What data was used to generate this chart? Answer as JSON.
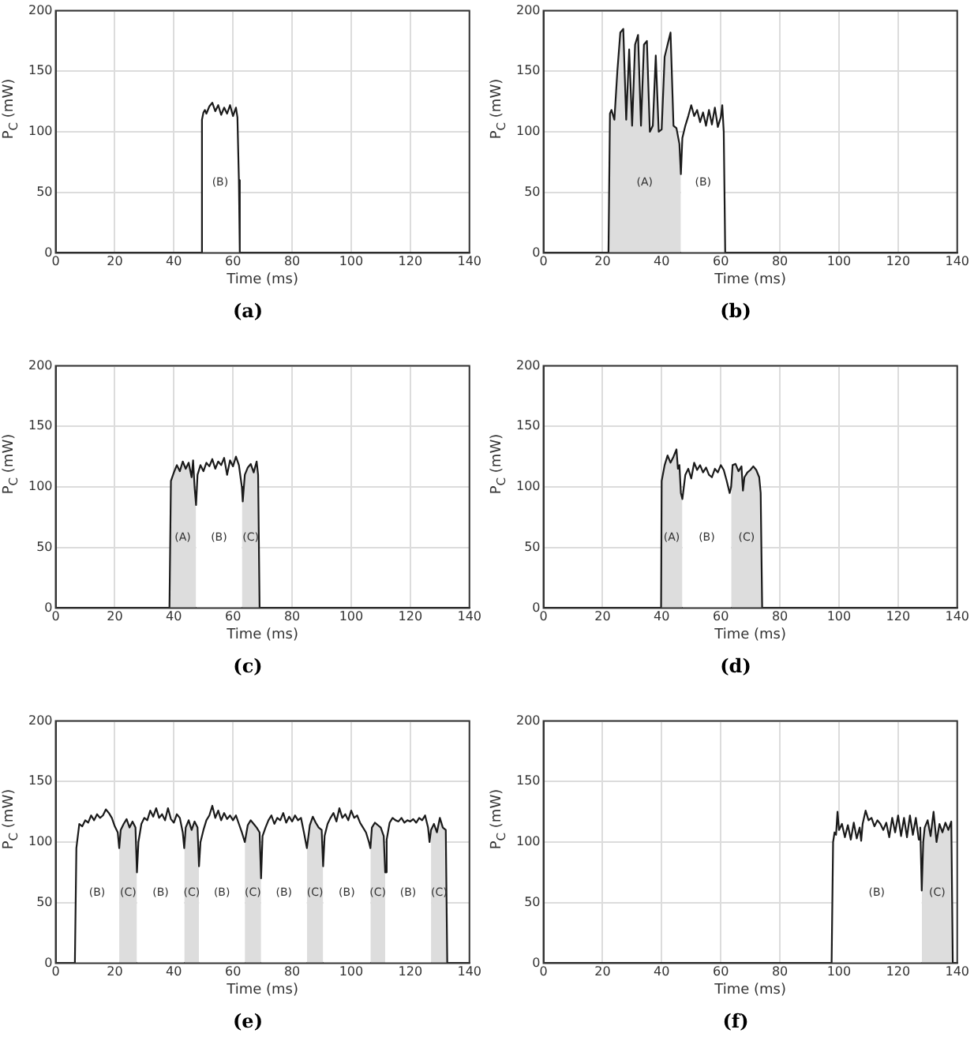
{
  "chart_data": [
    {
      "type": "line",
      "title": "(a)",
      "xlabel": "Time (ms)",
      "ylabel": "P$_{C}$ (mW)",
      "xlim": [
        0,
        140
      ],
      "xticks": [
        0,
        20,
        40,
        60,
        80,
        100,
        120,
        140
      ],
      "ylim": [
        0,
        200
      ],
      "yticks": [
        0,
        50,
        100,
        150,
        200
      ],
      "grid": true,
      "series": [
        {
          "type": "line",
          "color": "#1a1a1a",
          "x": [
            0,
            49,
            49.5,
            50,
            50.5,
            51,
            52,
            53,
            54,
            55,
            56,
            57,
            58,
            59,
            60,
            61,
            61.5,
            62,
            62.3,
            140
          ],
          "values": [
            0,
            0,
            110,
            116,
            118,
            115,
            121,
            124,
            117,
            122,
            114,
            120,
            115,
            122,
            113,
            120,
            112,
            60,
            0,
            0
          ]
        },
        {
          "type": "area",
          "name": "(B)",
          "color": "#ffffff",
          "x": [
            49,
            49.5,
            50,
            50.5,
            51,
            52,
            53,
            54,
            55,
            56,
            57,
            58,
            59,
            60,
            61,
            61.5,
            62,
            62.3
          ],
          "values": [
            0,
            110,
            116,
            118,
            115,
            121,
            124,
            117,
            122,
            114,
            120,
            115,
            122,
            113,
            120,
            112,
            60,
            0
          ]
        }
      ]
    },
    {
      "type": "line",
      "title": "(b)",
      "xlabel": "Time (ms)",
      "ylabel": "P$_{C}$ (mW)",
      "xlim": [
        0,
        140
      ],
      "xticks": [
        0,
        20,
        40,
        60,
        80,
        100,
        120,
        140
      ],
      "ylim": [
        0,
        200
      ],
      "yticks": [
        0,
        50,
        100,
        150,
        200
      ],
      "grid": true,
      "series": [
        {
          "type": "line",
          "color": "#1a1a1a",
          "x": [
            0,
            22,
            22.5,
            23,
            24,
            25,
            26,
            27,
            28,
            29,
            30,
            31,
            32,
            33,
            34,
            35,
            36,
            37,
            38,
            39,
            40,
            41,
            42,
            43,
            44,
            45,
            46,
            46.5,
            47,
            48,
            49,
            50,
            51,
            52,
            53,
            54,
            55,
            56,
            57,
            58,
            59,
            60,
            60.5,
            61,
            61.5,
            140
          ],
          "values": [
            0,
            0,
            115,
            118,
            110,
            150,
            182,
            185,
            110,
            168,
            105,
            172,
            180,
            105,
            172,
            175,
            100,
            105,
            163,
            100,
            102,
            162,
            172,
            182,
            105,
            103,
            90,
            65,
            95,
            105,
            113,
            122,
            113,
            118,
            108,
            116,
            105,
            118,
            106,
            120,
            104,
            112,
            122,
            100,
            0,
            0
          ]
        },
        {
          "type": "area",
          "name": "(A)",
          "color": "#dddddd",
          "x": [
            22,
            22.5,
            23,
            24,
            25,
            26,
            27,
            28,
            29,
            30,
            31,
            32,
            33,
            34,
            35,
            36,
            37,
            38,
            39,
            40,
            41,
            42,
            43,
            44,
            45,
            46,
            46.5
          ],
          "values": [
            0,
            115,
            118,
            110,
            150,
            182,
            185,
            110,
            168,
            105,
            172,
            180,
            105,
            172,
            175,
            100,
            105,
            163,
            100,
            102,
            162,
            172,
            182,
            105,
            103,
            90,
            65
          ]
        },
        {
          "type": "area",
          "name": "(B)",
          "color": "#ffffff",
          "x": [
            46.5,
            47,
            48,
            49,
            50,
            51,
            52,
            53,
            54,
            55,
            56,
            57,
            58,
            59,
            60,
            60.5,
            61,
            61.5
          ],
          "values": [
            65,
            95,
            105,
            113,
            122,
            113,
            118,
            108,
            116,
            105,
            118,
            106,
            120,
            104,
            112,
            122,
            100,
            0
          ]
        }
      ]
    },
    {
      "type": "line",
      "title": "(c)",
      "xlabel": "Time (ms)",
      "ylabel": "P$_{C}$ (mW)",
      "xlim": [
        0,
        140
      ],
      "xticks": [
        0,
        20,
        40,
        60,
        80,
        100,
        120,
        140
      ],
      "ylim": [
        0,
        200
      ],
      "yticks": [
        0,
        50,
        100,
        150,
        200
      ],
      "grid": true,
      "series": [
        {
          "type": "line",
          "color": "#1a1a1a",
          "x": [
            0,
            38.5,
            39,
            40,
            41,
            42,
            43,
            44,
            45,
            46,
            46.5,
            47,
            47.5,
            48,
            49,
            50,
            51,
            52,
            53,
            54,
            55,
            56,
            57,
            58,
            59,
            60,
            61,
            62,
            63,
            63.3,
            64,
            65,
            66,
            67,
            68,
            68.5,
            69,
            140
          ],
          "values": [
            0,
            0,
            105,
            112,
            118,
            113,
            121,
            115,
            120,
            108,
            122,
            100,
            85,
            110,
            118,
            113,
            120,
            117,
            123,
            115,
            121,
            118,
            124,
            110,
            122,
            117,
            125,
            118,
            100,
            88,
            110,
            116,
            119,
            112,
            121,
            110,
            0,
            0
          ]
        },
        {
          "type": "area",
          "name": "(A)",
          "color": "#dddddd",
          "x": [
            38.5,
            39,
            40,
            41,
            42,
            43,
            44,
            45,
            46,
            46.5,
            47,
            47.5
          ],
          "values": [
            0,
            105,
            112,
            118,
            113,
            121,
            115,
            120,
            108,
            122,
            100,
            85
          ]
        },
        {
          "type": "area",
          "name": "(B)",
          "color": "#ffffff",
          "x": [
            47.5,
            48,
            49,
            50,
            51,
            52,
            53,
            54,
            55,
            56,
            57,
            58,
            59,
            60,
            61,
            62,
            63
          ],
          "values": [
            85,
            110,
            118,
            113,
            120,
            117,
            123,
            115,
            121,
            118,
            124,
            110,
            122,
            117,
            125,
            118,
            100
          ]
        },
        {
          "type": "area",
          "name": "(C)",
          "color": "#dddddd",
          "x": [
            63,
            63.3,
            64,
            65,
            66,
            67,
            68,
            68.5,
            69
          ],
          "values": [
            100,
            88,
            110,
            116,
            119,
            112,
            121,
            110,
            0
          ]
        }
      ]
    },
    {
      "type": "line",
      "title": "(d)",
      "xlabel": "Time (ms)",
      "ylabel": "P$_{C}$ (mW)",
      "xlim": [
        0,
        140
      ],
      "xticks": [
        0,
        20,
        40,
        60,
        80,
        100,
        120,
        140
      ],
      "ylim": [
        0,
        200
      ],
      "yticks": [
        0,
        50,
        100,
        150,
        200
      ],
      "grid": true,
      "series": [
        {
          "type": "line",
          "color": "#1a1a1a",
          "x": [
            0,
            39.8,
            40,
            41,
            42,
            43,
            44,
            45,
            45.5,
            46,
            46.5,
            47,
            48,
            49,
            50,
            51,
            52,
            53,
            54,
            55,
            56,
            57,
            58,
            59,
            60,
            61,
            62,
            63,
            63.5,
            64,
            65,
            66,
            67,
            67.5,
            68,
            69,
            70,
            71,
            72,
            73,
            73.5,
            74,
            140
          ],
          "values": [
            0,
            0,
            105,
            118,
            126,
            120,
            125,
            131,
            115,
            118,
            95,
            90,
            110,
            115,
            107,
            120,
            114,
            118,
            112,
            116,
            110,
            108,
            115,
            112,
            118,
            114,
            105,
            95,
            100,
            118,
            119,
            113,
            117,
            97,
            108,
            112,
            114,
            117,
            114,
            108,
            95,
            0,
            0
          ]
        },
        {
          "type": "area",
          "name": "(A)",
          "color": "#dddddd",
          "x": [
            39.8,
            40,
            41,
            42,
            43,
            44,
            45,
            45.5,
            46,
            46.5,
            47
          ],
          "values": [
            0,
            105,
            118,
            126,
            120,
            125,
            131,
            115,
            118,
            95,
            90
          ]
        },
        {
          "type": "area",
          "name": "(B)",
          "color": "#ffffff",
          "x": [
            47,
            48,
            49,
            50,
            51,
            52,
            53,
            54,
            55,
            56,
            57,
            58,
            59,
            60,
            61,
            62,
            63,
            63.5
          ],
          "values": [
            90,
            110,
            115,
            107,
            120,
            114,
            118,
            112,
            116,
            110,
            108,
            115,
            112,
            118,
            114,
            105,
            95,
            100
          ]
        },
        {
          "type": "area",
          "name": "(C)",
          "color": "#dddddd",
          "x": [
            63.5,
            64,
            65,
            66,
            67,
            67.5,
            68,
            69,
            70,
            71,
            72,
            73,
            73.5,
            74
          ],
          "values": [
            100,
            118,
            119,
            113,
            117,
            97,
            108,
            112,
            114,
            117,
            114,
            108,
            95,
            0
          ]
        }
      ]
    },
    {
      "type": "line",
      "title": "(e)",
      "xlabel": "Time (ms)",
      "ylabel": "P$_{C}$ (mW)",
      "xlim": [
        0,
        140
      ],
      "xticks": [
        0,
        20,
        40,
        60,
        80,
        100,
        120,
        140
      ],
      "ylim": [
        0,
        200
      ],
      "yticks": [
        0,
        50,
        100,
        150,
        200
      ],
      "grid": true,
      "series": [
        {
          "type": "line",
          "color": "#1a1a1a",
          "x": [
            0,
            6.5,
            7,
            8,
            9,
            10,
            11,
            12,
            13,
            14,
            15,
            16,
            17,
            18,
            19,
            20,
            21,
            21.5,
            22,
            23,
            24,
            25,
            26,
            27,
            27.5,
            28,
            29,
            30,
            31,
            32,
            33,
            34,
            35,
            36,
            37,
            38,
            39,
            40,
            41,
            42,
            43,
            43.5,
            44,
            45,
            46,
            47,
            48,
            48.5,
            49,
            50,
            51,
            52,
            53,
            54,
            55,
            56,
            57,
            58,
            59,
            60,
            61,
            62,
            63,
            64,
            65,
            66,
            67,
            68,
            69,
            69.5,
            70,
            71,
            72,
            73,
            74,
            75,
            76,
            77,
            78,
            79,
            80,
            81,
            82,
            83,
            84,
            85,
            86,
            87,
            88,
            89,
            90,
            90.5,
            91,
            92,
            93,
            94,
            95,
            96,
            97,
            98,
            99,
            100,
            101,
            102,
            103,
            104,
            105,
            106,
            106.5,
            107,
            108,
            109,
            110,
            111,
            111.5,
            112,
            113,
            114,
            115,
            116,
            117,
            118,
            119,
            120,
            121,
            122,
            123,
            124,
            125,
            126,
            126.5,
            127,
            128,
            129,
            130,
            131,
            132,
            132.5,
            140
          ],
          "values": [
            0,
            0,
            95,
            115,
            113,
            118,
            116,
            122,
            118,
            123,
            120,
            122,
            127,
            124,
            120,
            113,
            108,
            95,
            110,
            115,
            119,
            112,
            117,
            112,
            75,
            100,
            115,
            120,
            118,
            126,
            121,
            128,
            120,
            123,
            118,
            128,
            119,
            116,
            123,
            120,
            108,
            95,
            112,
            118,
            110,
            117,
            112,
            80,
            100,
            110,
            118,
            122,
            130,
            120,
            126,
            118,
            124,
            119,
            122,
            118,
            122,
            115,
            108,
            100,
            114,
            118,
            115,
            112,
            108,
            70,
            105,
            112,
            118,
            122,
            115,
            120,
            118,
            124,
            116,
            121,
            117,
            122,
            118,
            120,
            108,
            95,
            114,
            121,
            116,
            112,
            110,
            80,
            105,
            115,
            120,
            124,
            117,
            128,
            120,
            123,
            118,
            126,
            120,
            122,
            116,
            112,
            108,
            100,
            95,
            112,
            116,
            114,
            112,
            105,
            75,
            102,
            116,
            120,
            118,
            117,
            120,
            116,
            118,
            117,
            119,
            116,
            120,
            118,
            122,
            112,
            100,
            110,
            115,
            108,
            120,
            112,
            110,
            0,
            0
          ]
        },
        {
          "type": "area",
          "name": "(B)",
          "color": "#ffffff",
          "x": [
            6.5,
            7,
            8,
            9,
            10,
            11,
            12,
            13,
            14,
            15,
            16,
            17,
            18,
            19,
            20,
            21,
            21.5
          ],
          "values": [
            0,
            95,
            115,
            113,
            118,
            116,
            122,
            118,
            123,
            120,
            122,
            127,
            124,
            120,
            113,
            108,
            95
          ]
        },
        {
          "type": "area",
          "name": "(C)",
          "color": "#dddddd",
          "x": [
            21.5,
            22,
            23,
            24,
            25,
            26,
            27,
            27.5
          ],
          "values": [
            95,
            110,
            115,
            119,
            112,
            117,
            112,
            75
          ]
        },
        {
          "type": "area",
          "name": "(B)",
          "color": "#ffffff",
          "x": [
            27.5,
            28,
            29,
            30,
            31,
            32,
            33,
            34,
            35,
            36,
            37,
            38,
            39,
            40,
            41,
            42,
            43,
            43.5
          ],
          "values": [
            75,
            100,
            115,
            120,
            118,
            126,
            121,
            128,
            120,
            123,
            118,
            128,
            119,
            116,
            123,
            120,
            108,
            95
          ]
        },
        {
          "type": "area",
          "name": "(C)",
          "color": "#dddddd",
          "x": [
            43.5,
            44,
            45,
            46,
            47,
            48,
            48.5
          ],
          "values": [
            95,
            112,
            118,
            110,
            117,
            112,
            80
          ]
        },
        {
          "type": "area",
          "name": "(B)",
          "color": "#ffffff",
          "x": [
            48.5,
            49,
            50,
            51,
            52,
            53,
            54,
            55,
            56,
            57,
            58,
            59,
            60,
            61,
            62,
            63,
            64
          ],
          "values": [
            80,
            100,
            110,
            118,
            122,
            130,
            120,
            126,
            118,
            124,
            119,
            122,
            118,
            122,
            115,
            108,
            100
          ]
        },
        {
          "type": "area",
          "name": "(C)",
          "color": "#dddddd",
          "x": [
            64,
            65,
            66,
            67,
            68,
            69,
            69.5
          ],
          "values": [
            100,
            114,
            118,
            115,
            112,
            108,
            70
          ]
        },
        {
          "type": "area",
          "name": "(B)",
          "color": "#ffffff",
          "x": [
            69.5,
            70,
            71,
            72,
            73,
            74,
            75,
            76,
            77,
            78,
            79,
            80,
            81,
            82,
            83,
            84,
            85
          ],
          "values": [
            70,
            105,
            112,
            118,
            122,
            115,
            120,
            118,
            124,
            116,
            121,
            117,
            122,
            118,
            120,
            108,
            95
          ]
        },
        {
          "type": "area",
          "name": "(C)",
          "color": "#dddddd",
          "x": [
            85,
            86,
            87,
            88,
            89,
            90,
            90.5
          ],
          "values": [
            95,
            114,
            121,
            116,
            112,
            110,
            80
          ]
        },
        {
          "type": "area",
          "name": "(B)",
          "color": "#ffffff",
          "x": [
            90.5,
            91,
            92,
            93,
            94,
            95,
            96,
            97,
            98,
            99,
            100,
            101,
            102,
            103,
            104,
            105,
            106,
            106.5
          ],
          "values": [
            80,
            105,
            115,
            120,
            124,
            117,
            128,
            120,
            123,
            118,
            126,
            120,
            122,
            116,
            112,
            108,
            100,
            95
          ]
        },
        {
          "type": "area",
          "name": "(C)",
          "color": "#dddddd",
          "x": [
            106.5,
            107,
            108,
            109,
            110,
            111,
            111.5
          ],
          "values": [
            95,
            112,
            116,
            114,
            112,
            105,
            75
          ]
        },
        {
          "type": "area",
          "name": "(B)",
          "color": "#ffffff",
          "x": [
            111.5,
            112,
            113,
            114,
            115,
            116,
            117,
            118,
            119,
            120,
            121,
            122,
            123,
            124,
            125,
            126,
            126.5,
            127
          ],
          "values": [
            75,
            102,
            116,
            120,
            118,
            117,
            120,
            116,
            118,
            117,
            119,
            116,
            120,
            118,
            122,
            112,
            100,
            110
          ]
        },
        {
          "type": "area",
          "name": "(C)",
          "color": "#dddddd",
          "x": [
            127,
            128,
            129,
            130,
            131,
            132,
            132.5
          ],
          "values": [
            110,
            115,
            108,
            120,
            112,
            110,
            0
          ]
        }
      ]
    },
    {
      "type": "line",
      "title": "(f)",
      "xlabel": "Time (ms)",
      "ylabel": "P$_{C}$ (mW)",
      "xlim": [
        0,
        140
      ],
      "xticks": [
        0,
        20,
        40,
        60,
        80,
        100,
        120,
        140
      ],
      "ylim": [
        0,
        200
      ],
      "yticks": [
        0,
        50,
        100,
        150,
        200
      ],
      "grid": true,
      "series": [
        {
          "type": "line",
          "color": "#1a1a1a",
          "x": [
            0,
            97.5,
            98,
            98.5,
            99,
            99.5,
            100,
            101,
            102,
            103,
            104,
            105,
            106,
            107,
            107.5,
            108,
            109,
            110,
            111,
            112,
            113,
            114,
            115,
            116,
            117,
            118,
            119,
            120,
            121,
            122,
            123,
            124,
            125,
            126,
            127,
            127.5,
            128,
            128.5,
            129,
            130,
            131,
            132,
            133,
            134,
            135,
            136,
            137,
            138,
            138.5,
            140
          ],
          "values": [
            0,
            0,
            100,
            108,
            106,
            125,
            110,
            115,
            104,
            114,
            102,
            116,
            103,
            112,
            101,
            115,
            126,
            118,
            120,
            113,
            118,
            115,
            110,
            116,
            104,
            120,
            108,
            122,
            105,
            120,
            104,
            122,
            106,
            120,
            102,
            112,
            60,
            100,
            112,
            118,
            105,
            125,
            100,
            115,
            108,
            116,
            110,
            117,
            0,
            0
          ]
        },
        {
          "type": "area",
          "name": "(B)",
          "color": "#ffffff",
          "x": [
            97.5,
            98,
            98.5,
            99,
            99.5,
            100,
            101,
            102,
            103,
            104,
            105,
            106,
            107,
            107.5,
            108,
            109,
            110,
            111,
            112,
            113,
            114,
            115,
            116,
            117,
            118,
            119,
            120,
            121,
            122,
            123,
            124,
            125,
            126,
            127,
            127.5,
            128
          ],
          "values": [
            0,
            100,
            108,
            106,
            125,
            110,
            115,
            104,
            114,
            102,
            116,
            103,
            112,
            101,
            115,
            126,
            118,
            120,
            113,
            118,
            115,
            110,
            116,
            104,
            120,
            108,
            122,
            105,
            120,
            104,
            122,
            106,
            120,
            102,
            112,
            60
          ]
        },
        {
          "type": "area",
          "name": "(C)",
          "color": "#dddddd",
          "x": [
            128,
            128.5,
            129,
            130,
            131,
            132,
            133,
            134,
            135,
            136,
            137,
            138,
            138.5
          ],
          "values": [
            60,
            100,
            112,
            118,
            105,
            125,
            100,
            115,
            108,
            116,
            110,
            117,
            0
          ]
        }
      ]
    }
  ]
}
